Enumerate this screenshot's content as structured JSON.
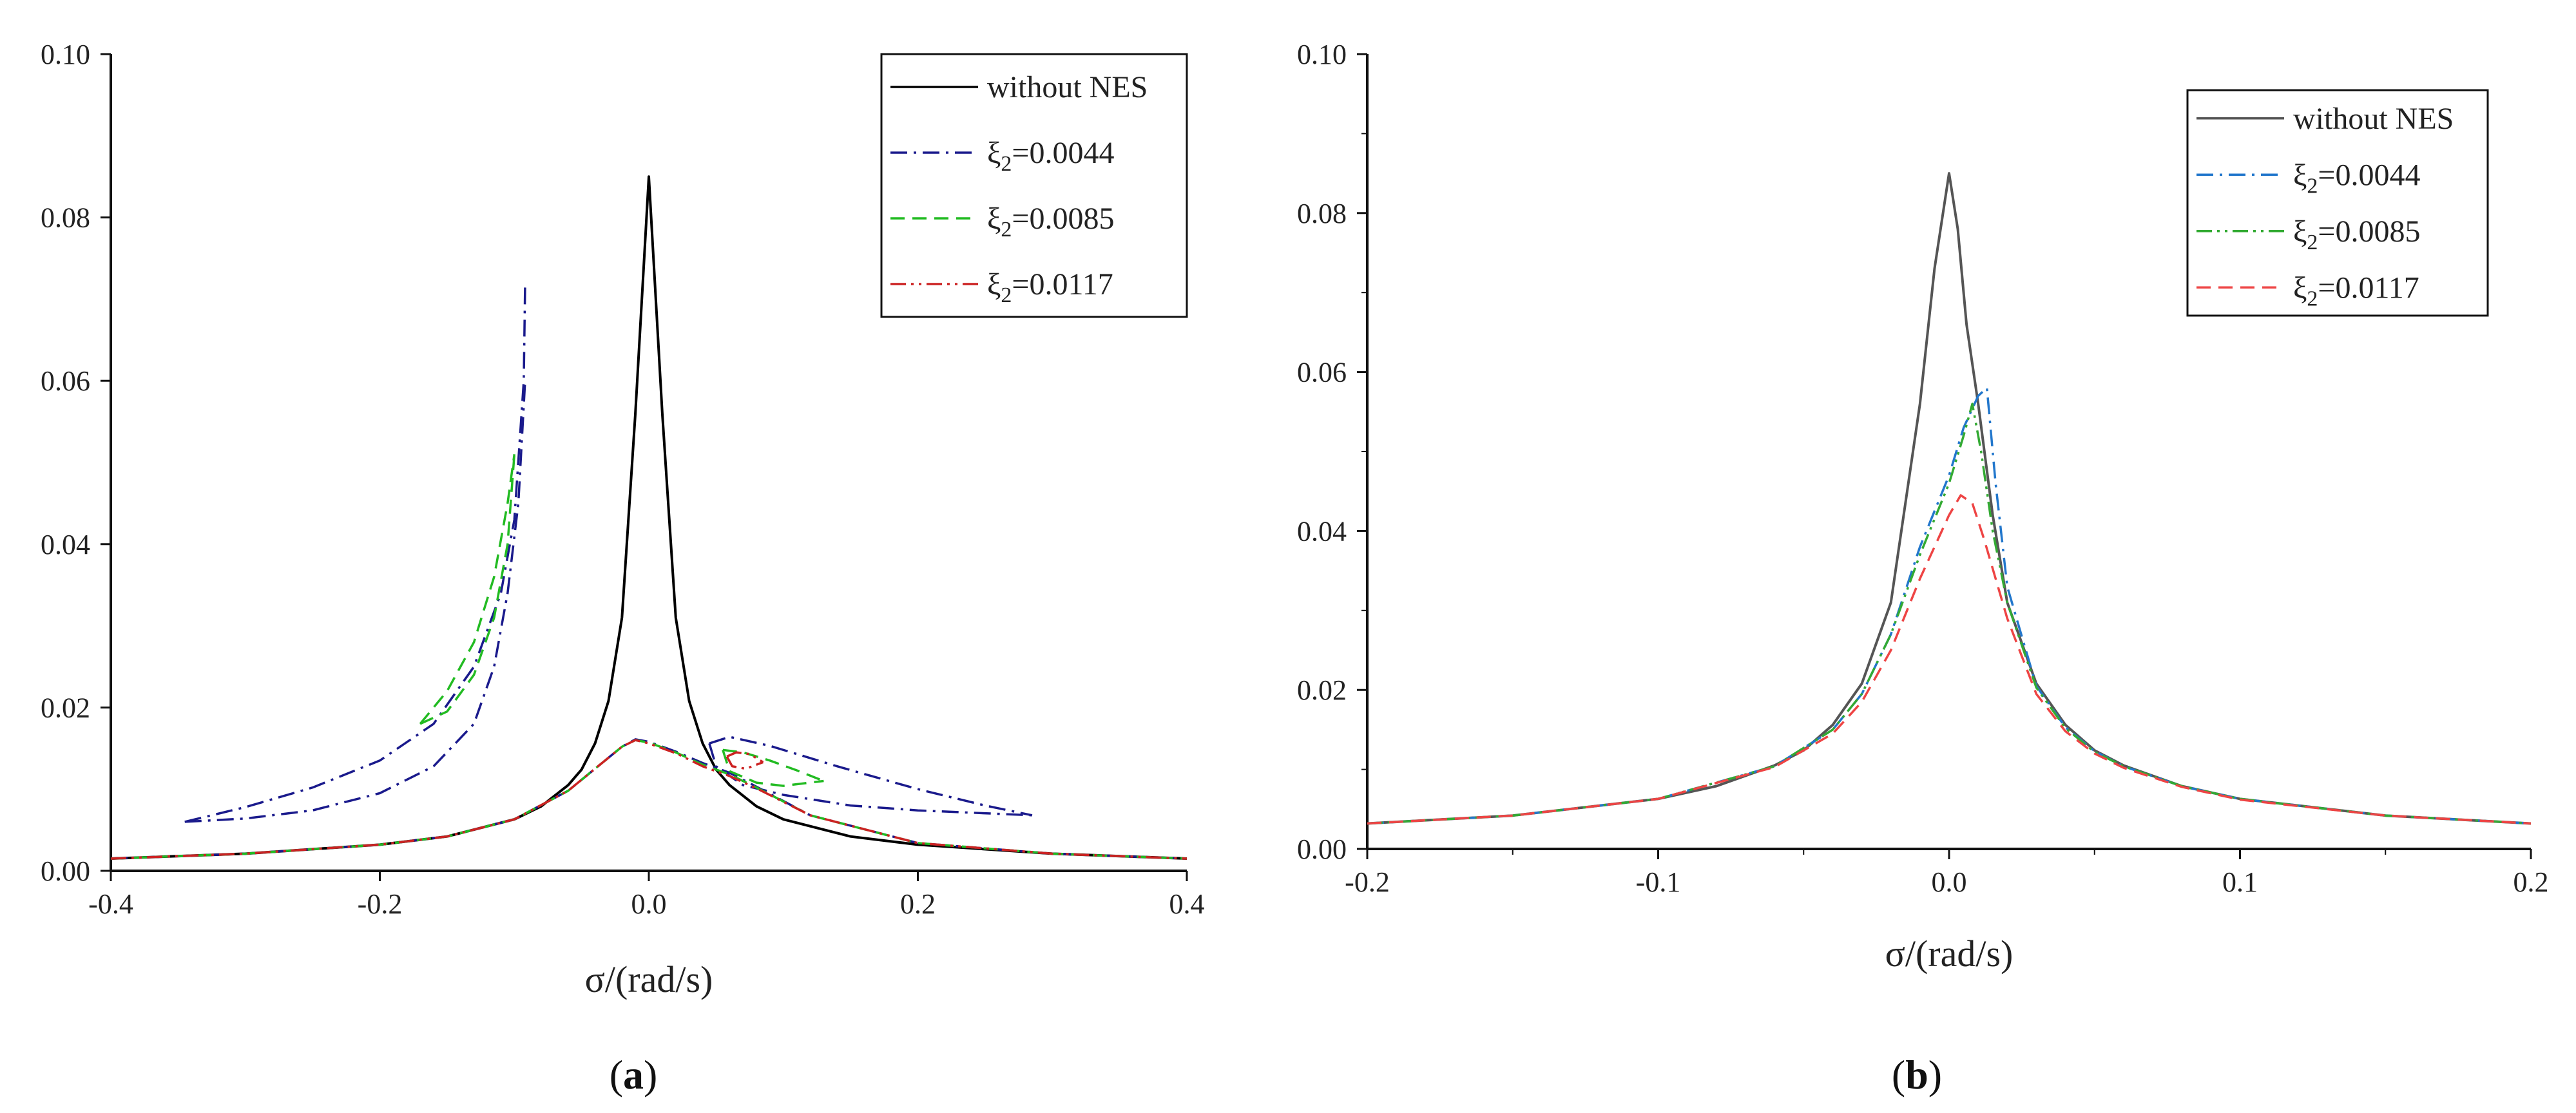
{
  "chart_data": [
    {
      "panel": "(a)",
      "panel_label": "(a)",
      "panel_letter": "a",
      "type": "line",
      "xlabel": "σ/(rad/s)",
      "ylabel": "",
      "xlim": [
        -0.4,
        0.4
      ],
      "ylim": [
        0,
        0.1
      ],
      "x_ticks": [
        "-0.4",
        "-0.2",
        "0.0",
        "0.2",
        "0.4"
      ],
      "y_ticks": [
        "0.00",
        "0.02",
        "0.04",
        "0.06",
        "0.08",
        "0.10"
      ],
      "grid": false,
      "legend_position": "top-right",
      "legend": [
        "without NES",
        "ξ2=0.0044",
        "ξ2=0.0085",
        "ξ2=0.0117"
      ],
      "series": [
        {
          "name": "without NES",
          "color": "#000000",
          "dash": "solid",
          "points": [
            [
              -0.4,
              0.0015
            ],
            [
              -0.3,
              0.0021
            ],
            [
              -0.2,
              0.0032
            ],
            [
              -0.15,
              0.0042
            ],
            [
              -0.1,
              0.0063
            ],
            [
              -0.08,
              0.0079
            ],
            [
              -0.06,
              0.0105
            ],
            [
              -0.05,
              0.0124
            ],
            [
              -0.04,
              0.0156
            ],
            [
              -0.03,
              0.0208
            ],
            [
              -0.02,
              0.031
            ],
            [
              -0.01,
              0.056
            ],
            [
              0.0,
              0.085
            ],
            [
              0.01,
              0.056
            ],
            [
              0.02,
              0.031
            ],
            [
              0.03,
              0.0208
            ],
            [
              0.04,
              0.0156
            ],
            [
              0.05,
              0.0124
            ],
            [
              0.06,
              0.0105
            ],
            [
              0.08,
              0.0079
            ],
            [
              0.1,
              0.0063
            ],
            [
              0.15,
              0.0042
            ],
            [
              0.2,
              0.0032
            ],
            [
              0.3,
              0.0021
            ],
            [
              0.4,
              0.0015
            ]
          ]
        },
        {
          "name": "ξ2=0.0044",
          "color": "#1a1a8c",
          "dash": "dashdot",
          "points": [
            [
              -0.4,
              0.0015
            ],
            [
              -0.3,
              0.0021
            ],
            [
              -0.2,
              0.0032
            ],
            [
              -0.15,
              0.0042
            ],
            [
              -0.1,
              0.0063
            ],
            [
              -0.06,
              0.0098
            ],
            [
              -0.04,
              0.0125
            ],
            [
              -0.02,
              0.0152
            ],
            [
              -0.01,
              0.0161
            ],
            [
              0.0,
              0.0158
            ],
            [
              0.02,
              0.0146
            ],
            [
              0.04,
              0.0132
            ],
            [
              0.06,
              0.012
            ],
            [
              0.08,
              0.0103
            ],
            [
              0.12,
              0.0068
            ],
            [
              0.2,
              0.0034
            ],
            [
              0.3,
              0.0021
            ],
            [
              0.4,
              0.0015
            ]
          ],
          "upper_branch": [
            [
              -0.345,
              0.006
            ],
            [
              -0.3,
              0.0078
            ],
            [
              -0.25,
              0.0102
            ],
            [
              -0.2,
              0.0135
            ],
            [
              -0.16,
              0.018
            ],
            [
              -0.13,
              0.025
            ],
            [
              -0.11,
              0.034
            ],
            [
              -0.1,
              0.043
            ],
            [
              -0.093,
              0.06
            ],
            [
              -0.092,
              0.072
            ]
          ],
          "middle_branch": [
            [
              -0.345,
              0.006
            ],
            [
              -0.3,
              0.0064
            ],
            [
              -0.25,
              0.0074
            ],
            [
              -0.2,
              0.0095
            ],
            [
              -0.16,
              0.0128
            ],
            [
              -0.13,
              0.018
            ],
            [
              -0.115,
              0.025
            ],
            [
              -0.105,
              0.034
            ],
            [
              -0.097,
              0.045
            ],
            [
              -0.092,
              0.06
            ]
          ],
          "right_upper": [
            [
              0.045,
              0.0156
            ],
            [
              0.06,
              0.0164
            ],
            [
              0.09,
              0.0153
            ],
            [
              0.14,
              0.0128
            ],
            [
              0.2,
              0.01
            ],
            [
              0.25,
              0.008
            ],
            [
              0.285,
              0.0068
            ]
          ],
          "right_middle": [
            [
              0.045,
              0.0156
            ],
            [
              0.05,
              0.0128
            ],
            [
              0.07,
              0.0105
            ],
            [
              0.1,
              0.0093
            ],
            [
              0.15,
              0.008
            ],
            [
              0.2,
              0.0074
            ],
            [
              0.285,
              0.0068
            ]
          ]
        },
        {
          "name": "ξ2=0.0085",
          "color": "#22bb22",
          "dash": "dashed",
          "points": [
            [
              -0.4,
              0.0015
            ],
            [
              -0.3,
              0.0021
            ],
            [
              -0.2,
              0.0032
            ],
            [
              -0.15,
              0.0042
            ],
            [
              -0.1,
              0.0063
            ],
            [
              -0.06,
              0.0098
            ],
            [
              -0.04,
              0.0125
            ],
            [
              -0.02,
              0.0152
            ],
            [
              -0.01,
              0.016
            ],
            [
              0.0,
              0.0157
            ],
            [
              0.02,
              0.0145
            ],
            [
              0.04,
              0.013
            ],
            [
              0.06,
              0.0118
            ],
            [
              0.08,
              0.0102
            ],
            [
              0.12,
              0.0068
            ],
            [
              0.2,
              0.0034
            ],
            [
              0.3,
              0.0021
            ],
            [
              0.4,
              0.0015
            ]
          ],
          "upper_branch": [
            [
              -0.17,
              0.018
            ],
            [
              -0.15,
              0.022
            ],
            [
              -0.13,
              0.028
            ],
            [
              -0.115,
              0.036
            ],
            [
              -0.105,
              0.045
            ],
            [
              -0.1,
              0.051
            ]
          ],
          "middle_branch": [
            [
              -0.17,
              0.018
            ],
            [
              -0.15,
              0.0195
            ],
            [
              -0.13,
              0.024
            ],
            [
              -0.115,
              0.031
            ],
            [
              -0.105,
              0.04
            ],
            [
              -0.1,
              0.051
            ]
          ],
          "right_upper": [
            [
              0.055,
              0.0148
            ],
            [
              0.07,
              0.0145
            ],
            [
              0.09,
              0.0135
            ],
            [
              0.11,
              0.0123
            ],
            [
              0.13,
              0.011
            ]
          ],
          "right_middle": [
            [
              0.055,
              0.0148
            ],
            [
              0.06,
              0.0122
            ],
            [
              0.08,
              0.0108
            ],
            [
              0.1,
              0.0104
            ],
            [
              0.13,
              0.011
            ]
          ]
        },
        {
          "name": "ξ2=0.0117",
          "color": "#cc2222",
          "dash": "dashdotdot",
          "points": [
            [
              -0.4,
              0.0015
            ],
            [
              -0.3,
              0.0021
            ],
            [
              -0.2,
              0.0032
            ],
            [
              -0.15,
              0.0042
            ],
            [
              -0.1,
              0.0063
            ],
            [
              -0.06,
              0.0098
            ],
            [
              -0.04,
              0.0125
            ],
            [
              -0.02,
              0.0152
            ],
            [
              -0.01,
              0.016
            ],
            [
              0.0,
              0.0156
            ],
            [
              0.02,
              0.0144
            ],
            [
              0.04,
              0.0128
            ],
            [
              0.06,
              0.0116
            ],
            [
              0.08,
              0.0101
            ],
            [
              0.12,
              0.0068
            ],
            [
              0.2,
              0.0034
            ],
            [
              0.3,
              0.0021
            ],
            [
              0.4,
              0.0015
            ]
          ],
          "right_upper": [
            [
              0.058,
              0.014
            ],
            [
              0.065,
              0.0145
            ],
            [
              0.075,
              0.0143
            ],
            [
              0.085,
              0.0133
            ]
          ],
          "right_middle": [
            [
              0.058,
              0.014
            ],
            [
              0.062,
              0.0128
            ],
            [
              0.072,
              0.0125
            ],
            [
              0.085,
              0.0133
            ]
          ]
        }
      ]
    },
    {
      "panel": "(b)",
      "panel_label": "(b)",
      "panel_letter": "b",
      "type": "line",
      "xlabel": "σ/(rad/s)",
      "ylabel": "",
      "xlim": [
        -0.2,
        0.2
      ],
      "ylim": [
        0,
        0.1
      ],
      "x_ticks": [
        "-0.2",
        "-0.1",
        "0.0",
        "0.1",
        "0.2"
      ],
      "y_ticks": [
        "0.00",
        "0.02",
        "0.04",
        "0.06",
        "0.08",
        "0.10"
      ],
      "grid": false,
      "legend_position": "top-right",
      "legend": [
        "without NES",
        "ξ2=0.0044",
        "ξ2=0.0085",
        "ξ2=0.0117"
      ],
      "series": [
        {
          "name": "without NES",
          "color": "#555555",
          "dash": "solid",
          "points": [
            [
              -0.2,
              0.0032
            ],
            [
              -0.15,
              0.0042
            ],
            [
              -0.1,
              0.0063
            ],
            [
              -0.08,
              0.0079
            ],
            [
              -0.06,
              0.0105
            ],
            [
              -0.05,
              0.0124
            ],
            [
              -0.04,
              0.0156
            ],
            [
              -0.03,
              0.0208
            ],
            [
              -0.02,
              0.031
            ],
            [
              -0.01,
              0.056
            ],
            [
              -0.005,
              0.073
            ],
            [
              0.0,
              0.085
            ],
            [
              0.003,
              0.078
            ],
            [
              0.006,
              0.066
            ],
            [
              0.01,
              0.056
            ],
            [
              0.015,
              0.042
            ],
            [
              0.02,
              0.031
            ],
            [
              0.03,
              0.0208
            ],
            [
              0.04,
              0.0156
            ],
            [
              0.05,
              0.0124
            ],
            [
              0.06,
              0.0105
            ],
            [
              0.08,
              0.0079
            ],
            [
              0.1,
              0.0063
            ],
            [
              0.15,
              0.0042
            ],
            [
              0.2,
              0.0032
            ]
          ]
        },
        {
          "name": "ξ2=0.0044",
          "color": "#2277cc",
          "dash": "dashdot",
          "points": [
            [
              -0.2,
              0.0032
            ],
            [
              -0.15,
              0.0042
            ],
            [
              -0.1,
              0.0063
            ],
            [
              -0.06,
              0.0104
            ],
            [
              -0.04,
              0.015
            ],
            [
              -0.03,
              0.0195
            ],
            [
              -0.02,
              0.027
            ],
            [
              -0.01,
              0.038
            ],
            [
              0.0,
              0.047
            ],
            [
              0.005,
              0.053
            ],
            [
              0.01,
              0.057
            ],
            [
              0.013,
              0.058
            ],
            [
              0.016,
              0.046
            ],
            [
              0.02,
              0.033
            ],
            [
              0.03,
              0.0205
            ],
            [
              0.04,
              0.0153
            ],
            [
              0.05,
              0.0123
            ],
            [
              0.06,
              0.0104
            ],
            [
              0.08,
              0.0079
            ],
            [
              0.1,
              0.0063
            ],
            [
              0.15,
              0.0042
            ],
            [
              0.2,
              0.0032
            ]
          ]
        },
        {
          "name": "ξ2=0.0085",
          "color": "#33aa33",
          "dash": "dashdotdot",
          "points": [
            [
              -0.2,
              0.0032
            ],
            [
              -0.15,
              0.0042
            ],
            [
              -0.1,
              0.0063
            ],
            [
              -0.06,
              0.0104
            ],
            [
              -0.04,
              0.015
            ],
            [
              -0.03,
              0.0195
            ],
            [
              -0.02,
              0.027
            ],
            [
              -0.01,
              0.037
            ],
            [
              0.0,
              0.046
            ],
            [
              0.005,
              0.052
            ],
            [
              0.008,
              0.056
            ],
            [
              0.011,
              0.05
            ],
            [
              0.015,
              0.04
            ],
            [
              0.02,
              0.031
            ],
            [
              0.03,
              0.0203
            ],
            [
              0.04,
              0.0152
            ],
            [
              0.05,
              0.0122
            ],
            [
              0.06,
              0.0104
            ],
            [
              0.08,
              0.0079
            ],
            [
              0.1,
              0.0063
            ],
            [
              0.15,
              0.0042
            ],
            [
              0.2,
              0.0032
            ]
          ]
        },
        {
          "name": "ξ2=0.0117",
          "color": "#ee4444",
          "dash": "dashed",
          "points": [
            [
              -0.2,
              0.0032
            ],
            [
              -0.15,
              0.0042
            ],
            [
              -0.1,
              0.0063
            ],
            [
              -0.06,
              0.0103
            ],
            [
              -0.04,
              0.0145
            ],
            [
              -0.03,
              0.0185
            ],
            [
              -0.02,
              0.025
            ],
            [
              -0.01,
              0.034
            ],
            [
              0.0,
              0.042
            ],
            [
              0.004,
              0.0445
            ],
            [
              0.008,
              0.0435
            ],
            [
              0.012,
              0.039
            ],
            [
              0.02,
              0.029
            ],
            [
              0.03,
              0.0195
            ],
            [
              0.04,
              0.0148
            ],
            [
              0.05,
              0.012
            ],
            [
              0.06,
              0.0102
            ],
            [
              0.08,
              0.0078
            ],
            [
              0.1,
              0.0062
            ],
            [
              0.15,
              0.0042
            ],
            [
              0.2,
              0.0032
            ]
          ]
        }
      ]
    }
  ]
}
